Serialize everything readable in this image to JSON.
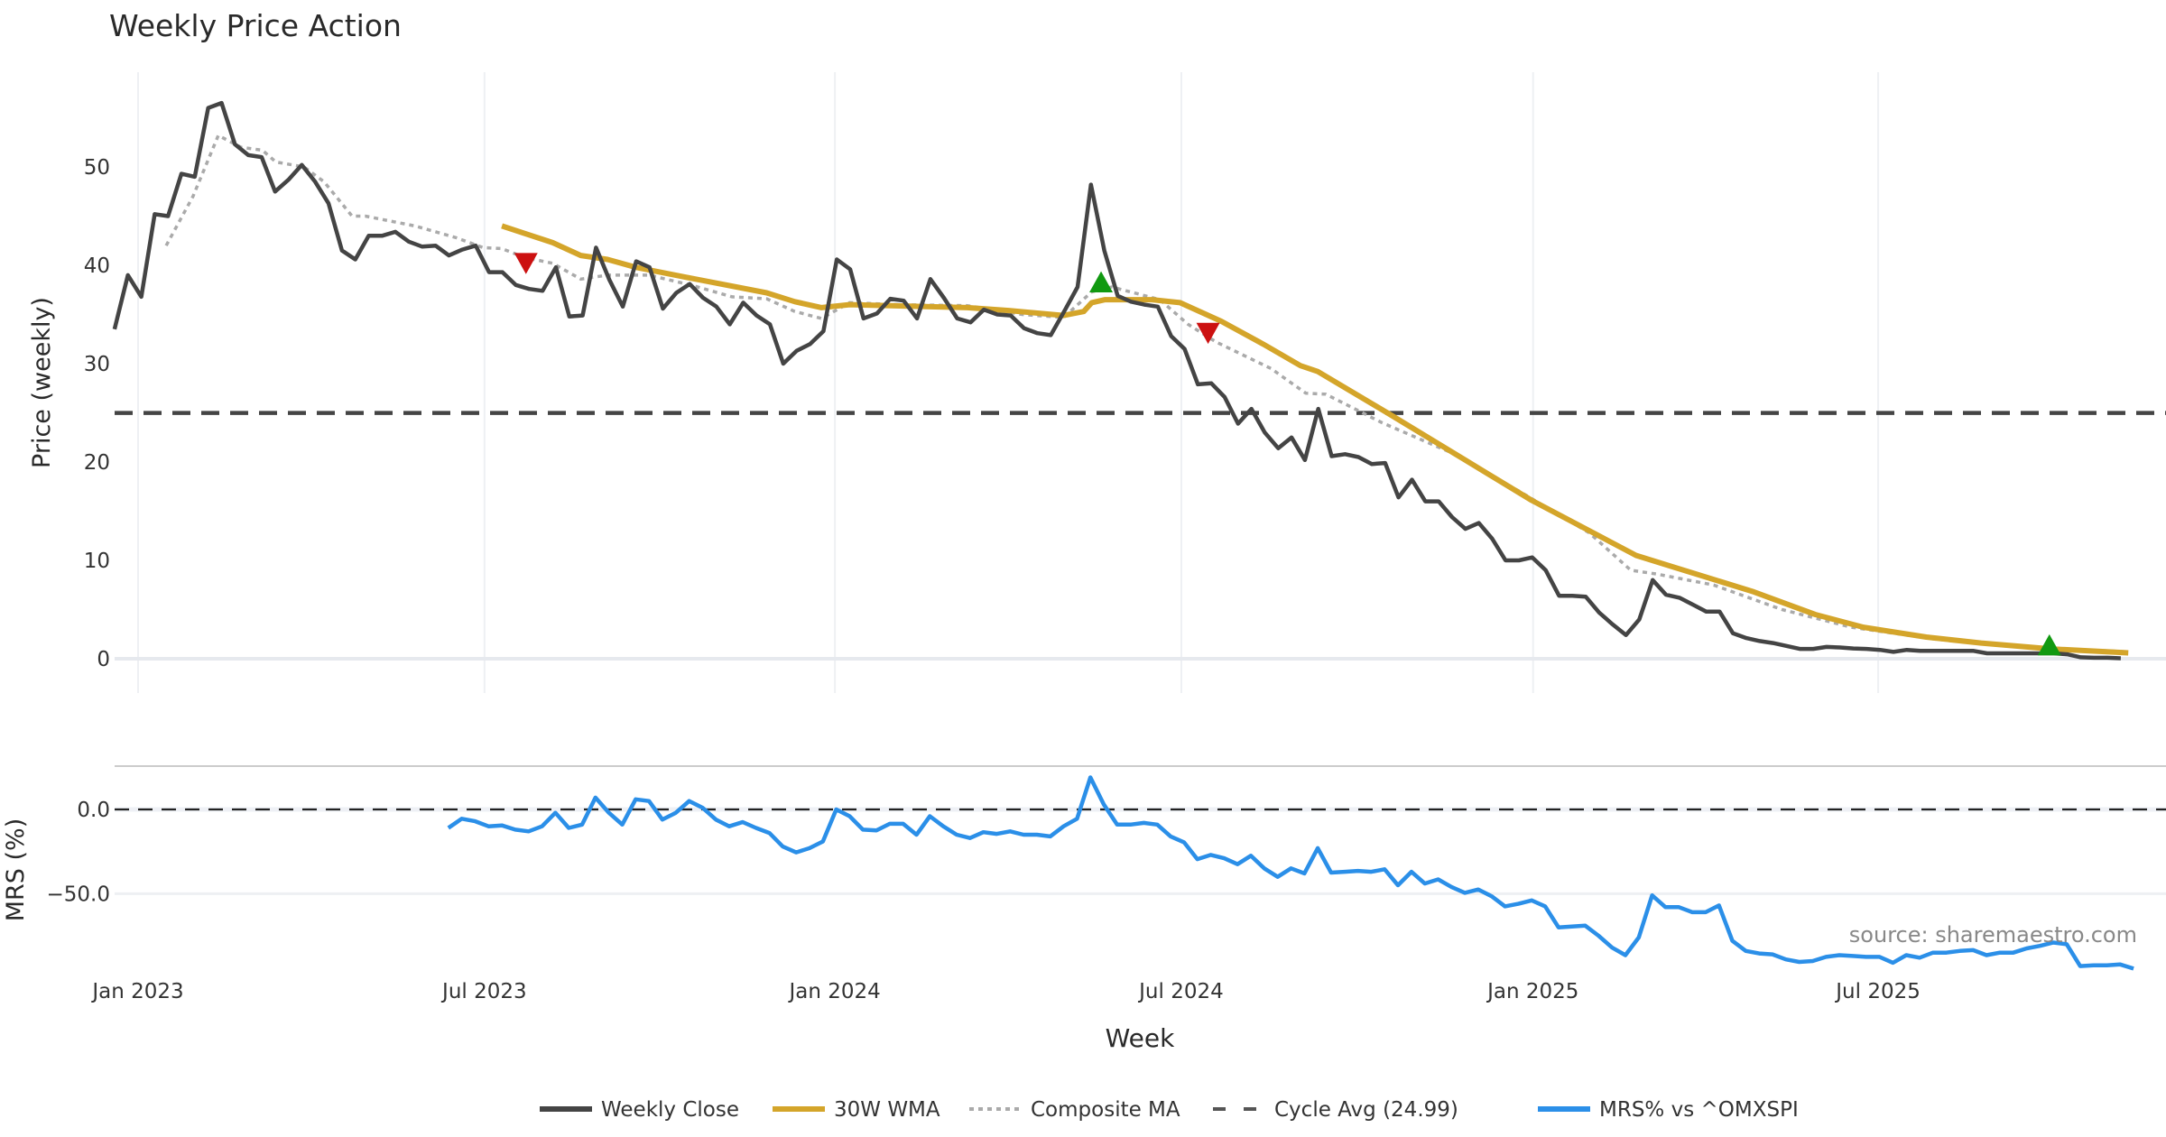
{
  "chart_data": {
    "type": "line",
    "title": "Weekly Price Action",
    "xlabel": "Week",
    "source": "source: sharemaestro.com",
    "x_units": "weeks since 2023-01-01",
    "x_ticks": [
      {
        "w": 0,
        "label": "Jan 2023"
      },
      {
        "w": 25.9,
        "label": "Jul 2023"
      },
      {
        "w": 52.1,
        "label": "Jan 2024"
      },
      {
        "w": 78.0,
        "label": "Jul 2024"
      },
      {
        "w": 104.3,
        "label": "Jan 2025"
      },
      {
        "w": 130.1,
        "label": "Jul 2025"
      }
    ],
    "xlim": [
      -1.8,
      149.5
    ],
    "price_panel": {
      "ylabel": "Price (weekly)",
      "ylim": [
        -3.5,
        59
      ],
      "y_ticks": [
        {
          "v": 0,
          "label": "0"
        },
        {
          "v": 10,
          "label": "10"
        },
        {
          "v": 20,
          "label": "20"
        },
        {
          "v": 30,
          "label": "30"
        },
        {
          "v": 40,
          "label": "40"
        },
        {
          "v": 50,
          "label": "50"
        }
      ],
      "cycle_avg": 24.99,
      "weekly_close": {
        "name": "Weekly Close",
        "color": "#444444",
        "start_week": -1.76,
        "values": [
          33.5,
          39,
          36.8,
          45.2,
          45,
          49.3,
          49,
          56,
          56.5,
          52.3,
          51.2,
          51,
          47.5,
          48.7,
          50.2,
          48.5,
          46.3,
          41.5,
          40.6,
          43,
          43,
          43.4,
          42.4,
          41.9,
          42,
          41,
          41.6,
          42,
          39.3,
          39.3,
          38,
          37.6,
          37.4,
          39.8,
          34.8,
          34.9,
          41.8,
          38.5,
          35.8,
          40.4,
          39.8,
          35.6,
          37.2,
          38.1,
          36.7,
          35.8,
          34,
          36.2,
          34.9,
          34,
          30,
          31.3,
          32,
          33.3,
          40.6,
          39.6,
          34.6,
          35.1,
          36.6,
          36.4,
          34.6,
          38.6,
          36.7,
          34.6,
          34.2,
          35.5,
          35,
          34.9,
          33.6,
          33.1,
          32.9,
          35.3,
          37.8,
          48.2,
          41.5,
          36.9,
          36.3,
          36,
          35.8,
          32.8,
          31.5,
          27.9,
          28,
          26.6,
          23.9,
          25.4,
          23,
          21.4,
          22.5,
          20.2,
          25.4,
          20.6,
          20.8,
          20.5,
          19.8,
          19.9,
          16.4,
          18.2,
          16,
          16,
          14.4,
          13.2,
          13.8,
          12.2,
          10,
          10,
          10.3,
          9,
          6.4,
          6.4,
          6.3,
          4.7,
          3.5,
          2.4,
          4,
          8,
          6.5,
          6.2,
          5.5,
          4.8,
          4.8,
          2.6,
          2.1,
          1.8,
          1.6,
          1.3,
          1.0,
          1.0,
          1.2,
          1.15,
          1.05,
          1.0,
          0.9,
          0.7,
          0.9,
          0.8,
          0.8,
          0.8,
          0.8,
          0.8,
          0.55,
          0.55,
          0.55,
          0.55,
          0.55,
          0.55,
          0.45,
          0.15,
          0.1,
          0.1,
          0.05
        ]
      },
      "wma30": {
        "name": "30W WMA",
        "color": "#D4A52A",
        "points": [
          [
            27.2,
            44.0
          ],
          [
            31.0,
            42.3
          ],
          [
            33.1,
            41.0
          ],
          [
            35.1,
            40.6
          ],
          [
            37.2,
            39.8
          ],
          [
            41.3,
            38.7
          ],
          [
            47.0,
            37.2
          ],
          [
            49.1,
            36.3
          ],
          [
            51.1,
            35.7
          ],
          [
            53.2,
            36.0
          ],
          [
            62.0,
            35.7
          ],
          [
            65.1,
            35.4
          ],
          [
            69.2,
            34.9
          ],
          [
            70.7,
            35.3
          ],
          [
            71.3,
            36.2
          ],
          [
            72.3,
            36.5
          ],
          [
            75.8,
            36.5
          ],
          [
            77.9,
            36.2
          ],
          [
            81.0,
            34.3
          ],
          [
            84.1,
            32.0
          ],
          [
            86.9,
            29.8
          ],
          [
            88.2,
            29.2
          ],
          [
            93.4,
            25.0
          ],
          [
            99.1,
            20.3
          ],
          [
            104.2,
            16.1
          ],
          [
            112.0,
            10.5
          ],
          [
            114.6,
            9.4
          ],
          [
            120.8,
            6.8
          ],
          [
            125.4,
            4.5
          ],
          [
            129.0,
            3.2
          ],
          [
            133.7,
            2.2
          ],
          [
            137.8,
            1.6
          ],
          [
            143.0,
            1.0
          ],
          [
            148.8,
            0.6
          ]
        ]
      },
      "composite_ma": {
        "name": "Composite MA",
        "color": "#AAAAAA",
        "points": [
          [
            2.1,
            42
          ],
          [
            4.1,
            47
          ],
          [
            6.0,
            53.2
          ],
          [
            7.7,
            52
          ],
          [
            9.3,
            51.7
          ],
          [
            10.3,
            50.5
          ],
          [
            12.4,
            50
          ],
          [
            13.9,
            48.5
          ],
          [
            16.0,
            45
          ],
          [
            17.0,
            45
          ],
          [
            20.7,
            44
          ],
          [
            23.8,
            42.8
          ],
          [
            25.8,
            41.8
          ],
          [
            27.2,
            41.7
          ],
          [
            28.9,
            40.8
          ],
          [
            31.0,
            40.2
          ],
          [
            33.1,
            38.6
          ],
          [
            35.1,
            39
          ],
          [
            38.2,
            39
          ],
          [
            41.3,
            38
          ],
          [
            44.4,
            36.8
          ],
          [
            47.0,
            36.6
          ],
          [
            49.1,
            35.3
          ],
          [
            51.1,
            34.6
          ],
          [
            53.2,
            36.2
          ],
          [
            56.8,
            36
          ],
          [
            62.0,
            35.9
          ],
          [
            66.1,
            35
          ],
          [
            69.2,
            34.7
          ],
          [
            71.3,
            37.3
          ],
          [
            72.8,
            37.8
          ],
          [
            76.4,
            36.5
          ],
          [
            78.5,
            34
          ],
          [
            80.6,
            32.2
          ],
          [
            84.7,
            29.5
          ],
          [
            87.3,
            27
          ],
          [
            88.8,
            26.9
          ],
          [
            93.0,
            24
          ],
          [
            98.1,
            21
          ],
          [
            103.3,
            17
          ],
          [
            108.5,
            12.8
          ],
          [
            111.6,
            9
          ],
          [
            113.6,
            8.6
          ],
          [
            117.8,
            7.5
          ],
          [
            122.9,
            5
          ],
          [
            128.1,
            3.2
          ],
          [
            134.3,
            2
          ],
          [
            139.5,
            1.3
          ],
          [
            148.8,
            0.7
          ]
        ]
      },
      "signals": [
        {
          "type": "sell",
          "w": 29.0,
          "v": 40.3,
          "color": "#CC1111"
        },
        {
          "type": "buy",
          "w": 72.0,
          "v": 38.2,
          "color": "#119911"
        },
        {
          "type": "sell",
          "w": 80.0,
          "v": 33.2,
          "color": "#CC1111"
        },
        {
          "type": "buy",
          "w": 142.9,
          "v": 1.3,
          "color": "#119911"
        }
      ]
    },
    "mrs_panel": {
      "ylabel": "MRS (%)",
      "ylim": [
        -98,
        25
      ],
      "y_ticks": [
        {
          "v": 0,
          "label": "0.0"
        },
        {
          "v": -50,
          "label": "−50.0"
        }
      ],
      "mrs": {
        "name": "MRS% vs ^OMXSPI",
        "color": "#2B8FE8",
        "start_week": 23.2,
        "values": [
          -11,
          -5.5,
          -7,
          -10,
          -9.5,
          -12,
          -13,
          -10,
          -2,
          -11,
          -9,
          7,
          -2,
          -9,
          6,
          5,
          -6,
          -2,
          5,
          1,
          -6,
          -10,
          -7.5,
          -11,
          -14,
          -22,
          -25.5,
          -23,
          -19,
          0,
          -4,
          -12,
          -12.5,
          -8.5,
          -8.5,
          -15,
          -4,
          -10,
          -15,
          -17,
          -13.5,
          -14.5,
          -13,
          -15,
          -15,
          -16,
          -10,
          -5.5,
          19,
          3,
          -9,
          -9,
          -8,
          -9,
          -16,
          -19.5,
          -29.5,
          -27,
          -29,
          -32.5,
          -27.5,
          -35,
          -40,
          -35,
          -38,
          -23,
          -37.5,
          -37,
          -36.5,
          -37,
          -35.5,
          -45,
          -37,
          -44,
          -41.5,
          -46,
          -49.5,
          -47.5,
          -51.5,
          -57.5,
          -56,
          -54,
          -57.5,
          -70,
          -69.5,
          -69,
          -75,
          -82,
          -86.5,
          -76,
          -51,
          -58,
          -58,
          -61,
          -61,
          -57,
          -78,
          -84,
          -85.5,
          -86,
          -89,
          -90.5,
          -90,
          -87.5,
          -86.5,
          -87,
          -87.5,
          -87.5,
          -91,
          -86.5,
          -88,
          -85,
          -85,
          -84,
          -83.5,
          -86.5,
          -85,
          -85,
          -82.5,
          -81,
          -79,
          -80,
          -93,
          -92.5,
          -92.5,
          -92,
          -94.5
        ]
      }
    },
    "legend": {
      "placement": "bottom-center",
      "items": [
        {
          "label": "Weekly Close",
          "color": "#444444",
          "style": "solid"
        },
        {
          "label": "30W WMA",
          "color": "#D4A52A",
          "style": "solid"
        },
        {
          "label": "Composite MA",
          "color": "#AAAAAA",
          "style": "dotted"
        },
        {
          "label": "Cycle Avg (24.99)",
          "color": "#555555",
          "style": "dashed"
        },
        {
          "label": "MRS% vs ^OMXSPI",
          "color": "#2B8FE8",
          "style": "solid"
        }
      ]
    }
  }
}
